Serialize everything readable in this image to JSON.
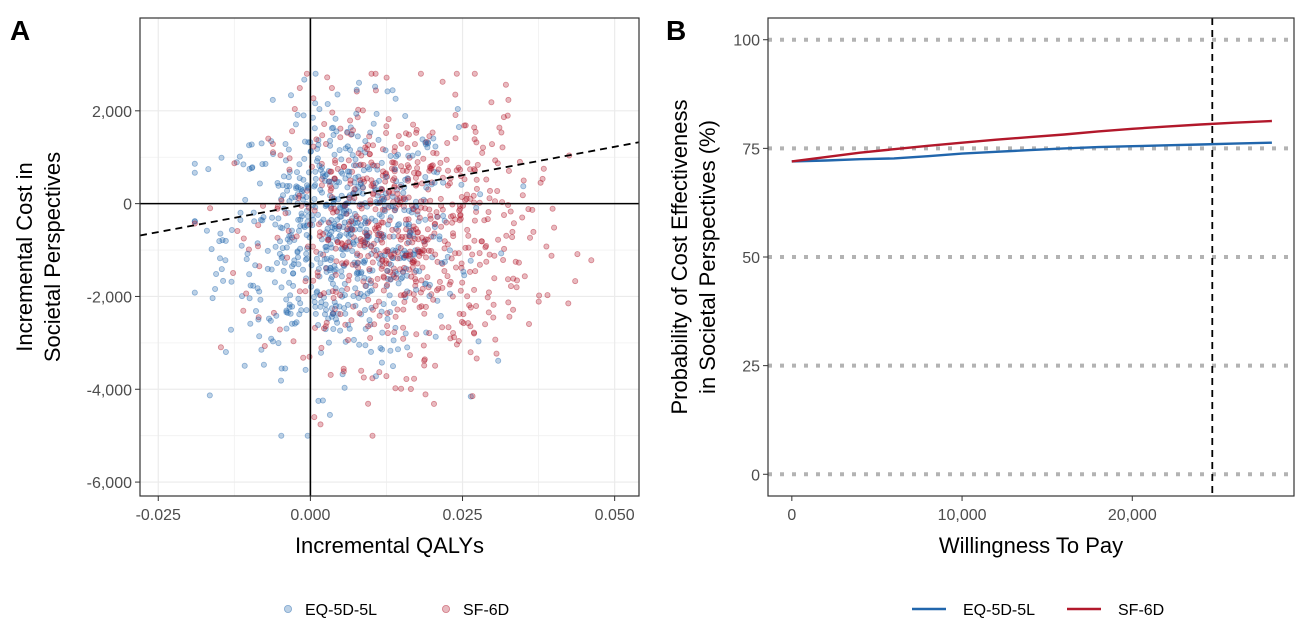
{
  "chart_data": [
    {
      "panel_tag": "A",
      "type": "scatter",
      "xlabel": "Incremental QALYs",
      "ylabel_lines": [
        "Incremental Cost in",
        "Societal Perspectives"
      ],
      "xlim": [
        -0.028,
        0.054
      ],
      "ylim": [
        -6300,
        4000
      ],
      "x_ticks": [
        -0.025,
        0,
        0.025,
        0.05
      ],
      "x_tick_labels": [
        "-0.025",
        "0.000",
        "0.025",
        "0.050"
      ],
      "y_ticks": [
        -6000,
        -4000,
        -2000,
        0,
        2000
      ],
      "y_tick_labels": [
        "-6,000",
        "-4,000",
        "-2,000",
        "0",
        "2,000"
      ],
      "grid": true,
      "reference_lines": {
        "x": 0,
        "y": 0
      },
      "threshold_line": {
        "style": "dashed",
        "slope": 24500,
        "intercept": 0
      },
      "series": [
        {
          "name": "EQ-5D-5L",
          "color": "#2166ac",
          "center": [
            0.005,
            -700
          ],
          "spread": [
            0.0095,
            1350
          ],
          "n": 700
        },
        {
          "name": "SF-6D",
          "color": "#b2182b",
          "center": [
            0.015,
            -650
          ],
          "spread": [
            0.0105,
            1400
          ],
          "n": 700
        }
      ],
      "legend": {
        "position": "bottom",
        "marker": "point"
      }
    },
    {
      "panel_tag": "B",
      "type": "line",
      "xlabel": "Willingness To Pay",
      "ylabel_lines": [
        "Probability of Cost Effectiveness",
        "in Societal Perspectives (%)"
      ],
      "xlim": [
        -1400,
        29500
      ],
      "ylim": [
        -5,
        105
      ],
      "x_ticks": [
        0,
        10000,
        20000
      ],
      "x_tick_labels": [
        "0",
        "10,000",
        "20,000"
      ],
      "y_ticks": [
        0,
        25,
        50,
        75,
        100
      ],
      "y_tick_labels": [
        "0",
        "25",
        "50",
        "75",
        "100"
      ],
      "grid": "horizontal dotted",
      "threshold_x": 24700,
      "x": [
        0,
        2000,
        4000,
        6000,
        8000,
        10000,
        12000,
        14000,
        16000,
        18000,
        20000,
        22000,
        24000,
        26000,
        28200
      ],
      "series": [
        {
          "name": "EQ-5D-5L",
          "color": "#2166ac",
          "values": [
            72,
            72.2,
            72.5,
            72.7,
            73.2,
            73.8,
            74.2,
            74.6,
            75.0,
            75.3,
            75.5,
            75.7,
            75.9,
            76.1,
            76.3
          ]
        },
        {
          "name": "SF-6D",
          "color": "#b2182b",
          "values": [
            72,
            73.0,
            74.0,
            74.8,
            75.6,
            76.3,
            77.0,
            77.6,
            78.2,
            78.9,
            79.5,
            80.0,
            80.5,
            80.9,
            81.3
          ]
        }
      ],
      "legend": {
        "position": "bottom",
        "marker": "line"
      }
    }
  ]
}
